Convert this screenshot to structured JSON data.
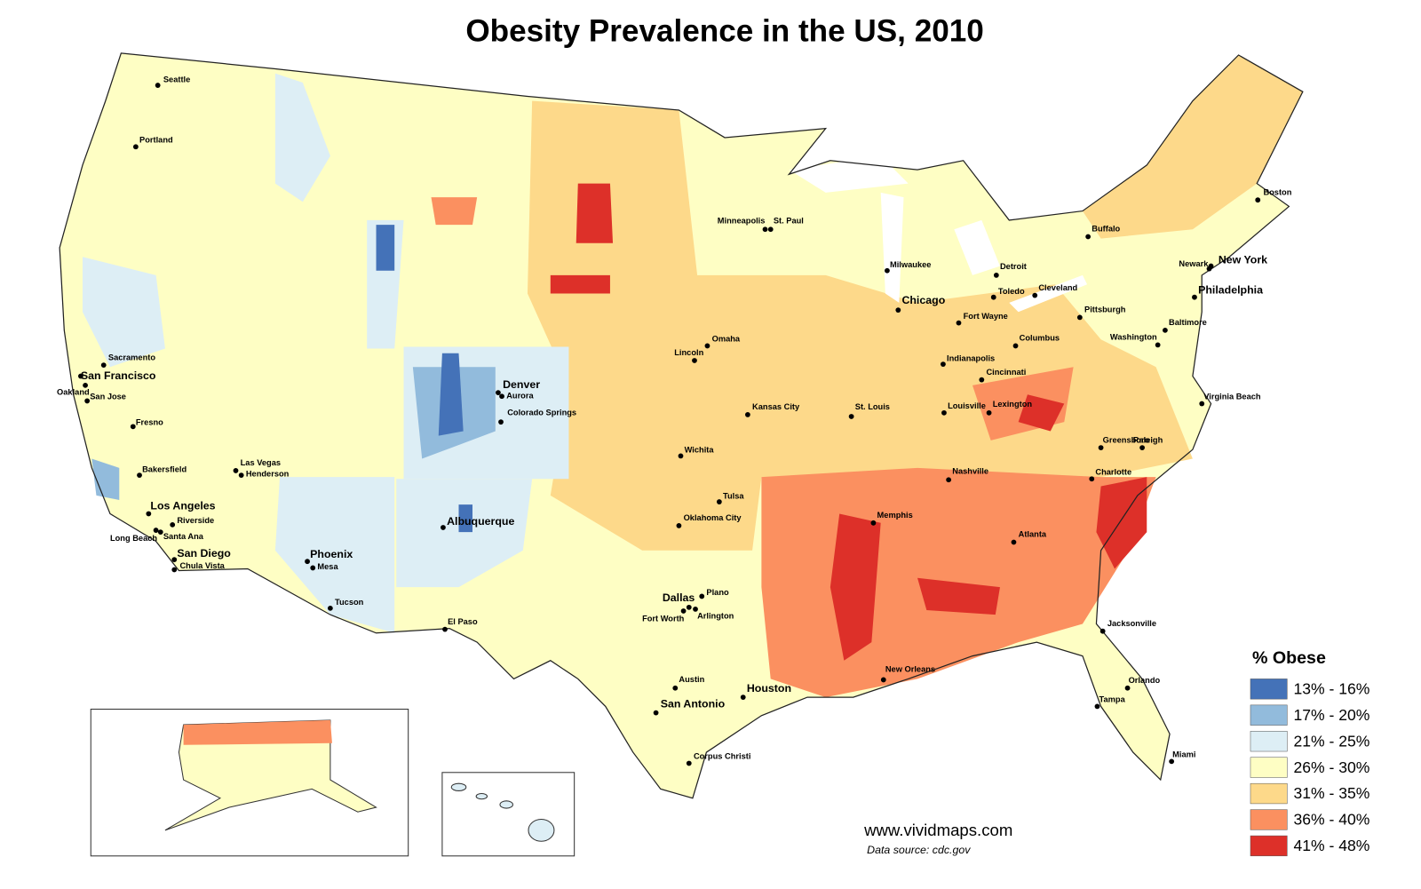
{
  "title": "Obesity Prevalence in the US, 2010",
  "cities": [
    "Seattle",
    "Portland",
    "Sacramento",
    "San Francisco",
    "Oakland",
    "San Jose",
    "Fresno",
    "Bakersfield",
    "Los Angeles",
    "Riverside",
    "Santa Ana",
    "Long Beach",
    "San Diego",
    "Chula Vista",
    "Las Vegas",
    "Henderson",
    "Phoenix",
    "Mesa",
    "Tucson",
    "Denver",
    "Aurora",
    "Colorado Springs",
    "Albuquerque",
    "El Paso",
    "Lincoln",
    "Omaha",
    "Kansas City",
    "Wichita",
    "Tulsa",
    "Oklahoma City",
    "Dallas",
    "Plano",
    "Fort Worth",
    "Arlington",
    "Austin",
    "San Antonio",
    "Houston",
    "Corpus Christi",
    "Minneapolis",
    "St. Paul",
    "Milwaukee",
    "Chicago",
    "St. Louis",
    "Memphis",
    "New Orleans",
    "Louisville",
    "Lexington",
    "Nashville",
    "Atlanta",
    "Indianapolis",
    "Cincinnati",
    "Fort Wayne",
    "Columbus",
    "Detroit",
    "Toledo",
    "Cleveland",
    "Pittsburgh",
    "Buffalo",
    "Boston",
    "New York",
    "Newark",
    "Philadelphia",
    "Baltimore",
    "Washington",
    "Virginia Beach",
    "Greensboro",
    "Raleigh",
    "Charlotte",
    "Jacksonville",
    "Orlando",
    "Tampa",
    "Miami"
  ],
  "legend": {
    "title": "% Obese",
    "items": [
      {
        "label": "13% - 16%",
        "color": "#4472b8"
      },
      {
        "label": "17% - 20%",
        "color": "#92bbdc"
      },
      {
        "label": "21% - 25%",
        "color": "#ddeef5"
      },
      {
        "label": "26% - 30%",
        "color": "#fefec4"
      },
      {
        "label": "31% - 35%",
        "color": "#fdd98a"
      },
      {
        "label": "36% - 40%",
        "color": "#fb9060"
      },
      {
        "label": "41% - 48%",
        "color": "#dd3029"
      }
    ]
  },
  "credit": "www.vividmaps.com",
  "source": "Data source: cdc.gov"
}
